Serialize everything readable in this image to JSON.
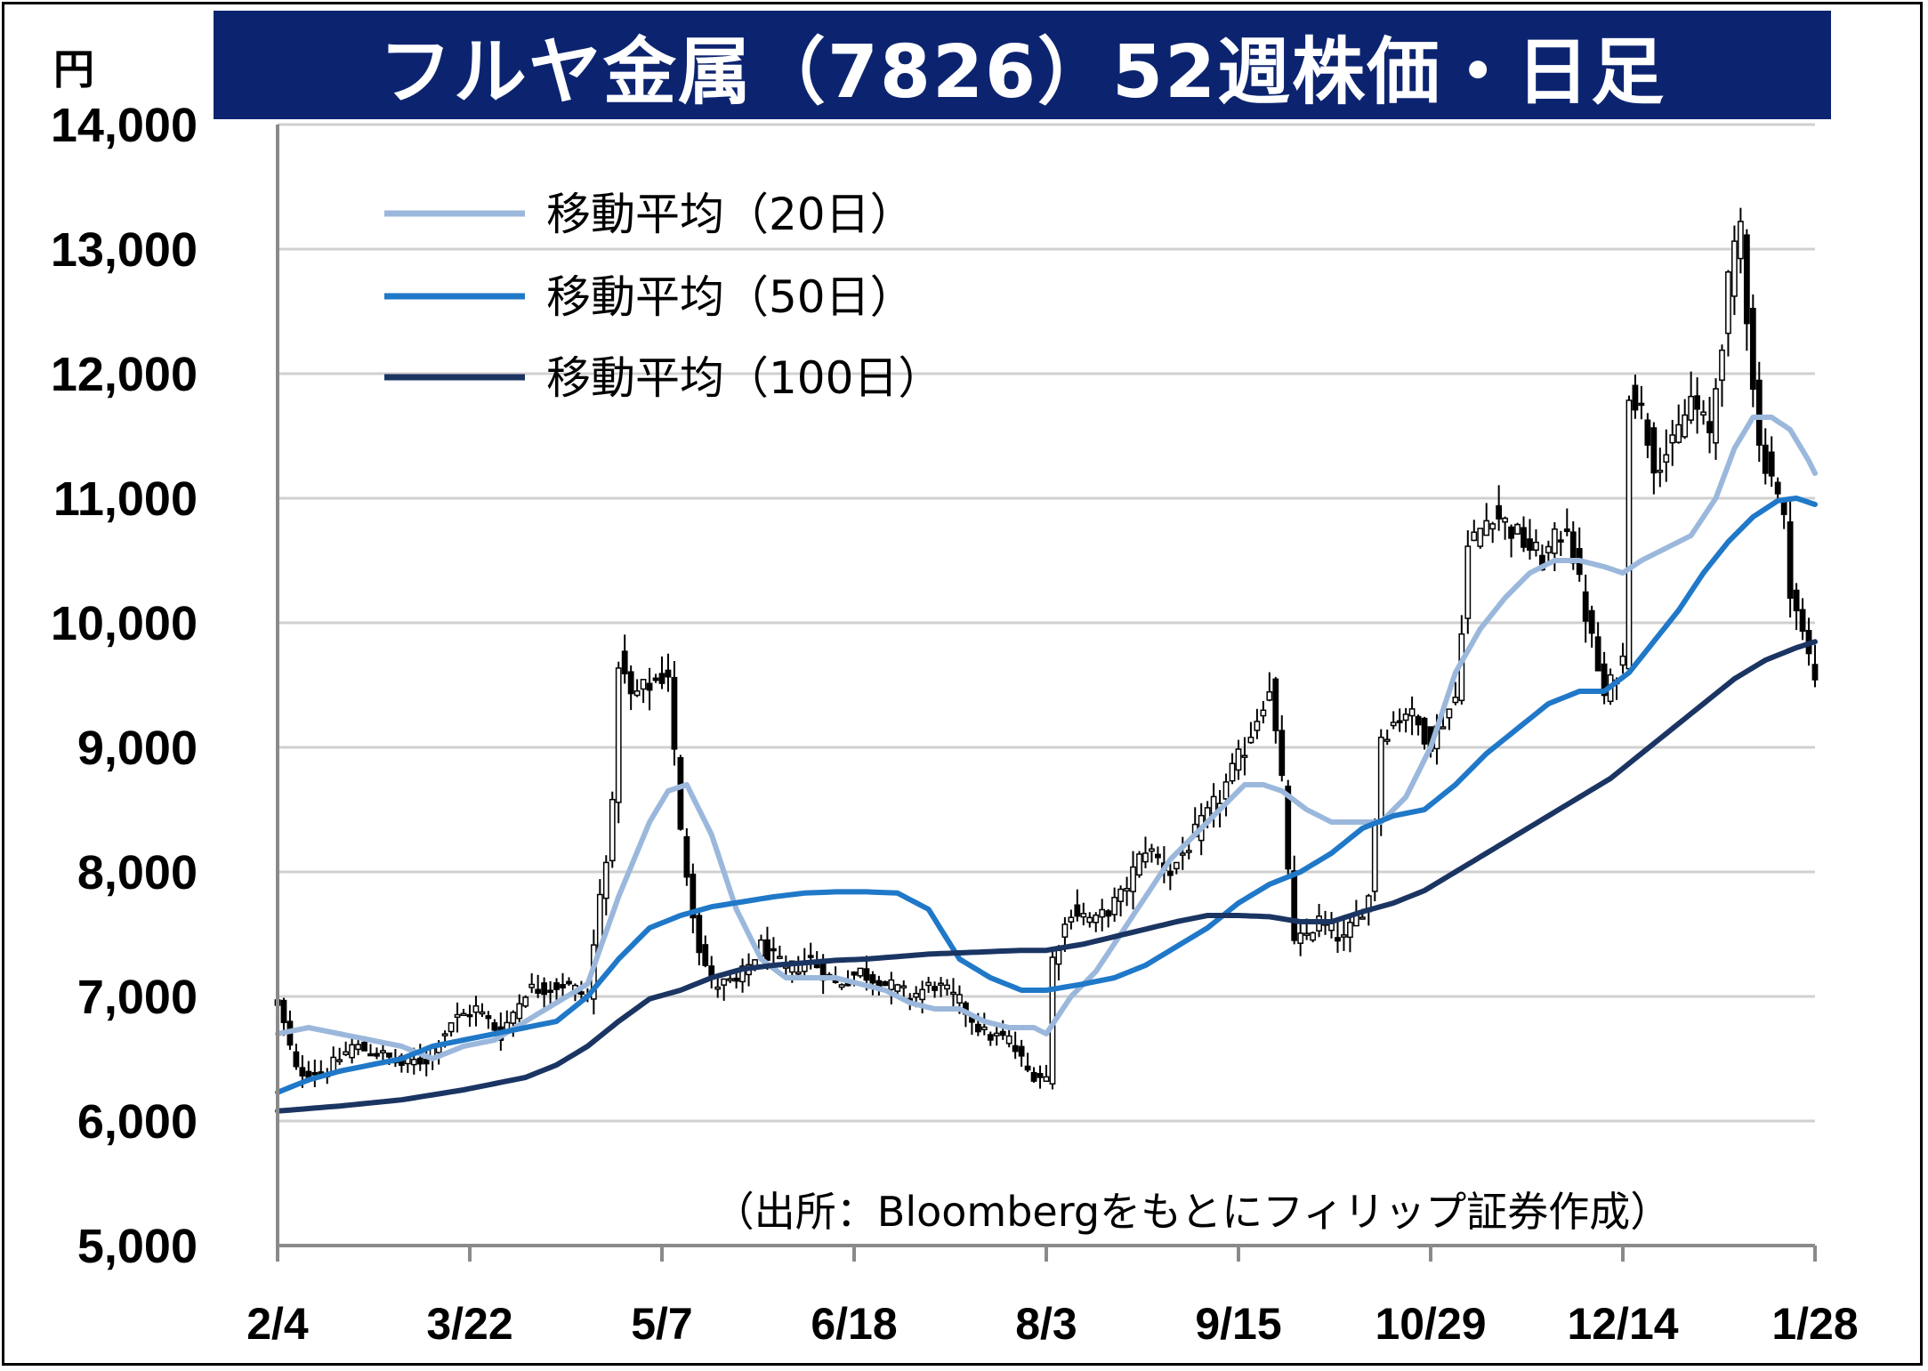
{
  "title": "フルヤ金属（7826）52週株価・日足",
  "unit": "円",
  "source": "（出所：Bloombergをもとにフィリップ証券作成）",
  "colors": {
    "title_bg": "#0c2470",
    "ma20": "#9bb8dc",
    "ma50": "#1f78c8",
    "ma100": "#1b3563",
    "candle": "#000000",
    "grid": "#d0d0d0"
  },
  "chart_data": {
    "type": "candlestick",
    "title": "フルヤ金属（7826）52週株価・日足",
    "ylabel": "円",
    "ylim": [
      5000,
      14000
    ],
    "yticks": [
      {
        "value": 5000,
        "label": "5,000"
      },
      {
        "value": 6000,
        "label": "6,000"
      },
      {
        "value": 7000,
        "label": "7,000"
      },
      {
        "value": 8000,
        "label": "8,000"
      },
      {
        "value": 9000,
        "label": "9,000"
      },
      {
        "value": 10000,
        "label": "10,000"
      },
      {
        "value": 11000,
        "label": "11,000"
      },
      {
        "value": 12000,
        "label": "12,000"
      },
      {
        "value": 13000,
        "label": "13,000"
      },
      {
        "value": 14000,
        "label": "14,000"
      }
    ],
    "xticks": [
      {
        "index": 0,
        "label": "2/4"
      },
      {
        "index": 31,
        "label": "3/22"
      },
      {
        "index": 62,
        "label": "5/7"
      },
      {
        "index": 93,
        "label": "6/18"
      },
      {
        "index": 124,
        "label": "8/3"
      },
      {
        "index": 155,
        "label": "9/15"
      },
      {
        "index": 186,
        "label": "10/29"
      },
      {
        "index": 217,
        "label": "12/14"
      },
      {
        "index": 248,
        "label": "1/28"
      }
    ],
    "x_count": 249,
    "grid": true,
    "legend_position": "top-left",
    "close_anchors": [
      [
        0,
        6950
      ],
      [
        3,
        6400
      ],
      [
        8,
        6400
      ],
      [
        12,
        6600
      ],
      [
        16,
        6550
      ],
      [
        20,
        6450
      ],
      [
        24,
        6500
      ],
      [
        28,
        6800
      ],
      [
        32,
        6900
      ],
      [
        36,
        6700
      ],
      [
        40,
        7050
      ],
      [
        46,
        7100
      ],
      [
        50,
        7000
      ],
      [
        52,
        7800
      ],
      [
        54,
        8500
      ],
      [
        55,
        9700
      ],
      [
        57,
        9400
      ],
      [
        60,
        9500
      ],
      [
        63,
        9600
      ],
      [
        65,
        8300
      ],
      [
        68,
        7400
      ],
      [
        70,
        7100
      ],
      [
        74,
        7100
      ],
      [
        78,
        7400
      ],
      [
        82,
        7200
      ],
      [
        86,
        7300
      ],
      [
        90,
        7100
      ],
      [
        94,
        7200
      ],
      [
        98,
        7100
      ],
      [
        102,
        7000
      ],
      [
        106,
        7100
      ],
      [
        110,
        6950
      ],
      [
        114,
        6700
      ],
      [
        118,
        6650
      ],
      [
        121,
        6400
      ],
      [
        124,
        6350
      ],
      [
        125,
        7300
      ],
      [
        128,
        7700
      ],
      [
        132,
        7600
      ],
      [
        136,
        7800
      ],
      [
        140,
        8200
      ],
      [
        144,
        8000
      ],
      [
        148,
        8300
      ],
      [
        152,
        8600
      ],
      [
        156,
        9000
      ],
      [
        160,
        9500
      ],
      [
        162,
        8700
      ],
      [
        164,
        7400
      ],
      [
        168,
        7600
      ],
      [
        172,
        7450
      ],
      [
        176,
        7800
      ],
      [
        178,
        9100
      ],
      [
        182,
        9300
      ],
      [
        186,
        9050
      ],
      [
        190,
        9400
      ],
      [
        192,
        10600
      ],
      [
        196,
        10900
      ],
      [
        200,
        10700
      ],
      [
        204,
        10500
      ],
      [
        208,
        10800
      ],
      [
        210,
        10300
      ],
      [
        214,
        9400
      ],
      [
        217,
        9700
      ],
      [
        218,
        11900
      ],
      [
        220,
        11700
      ],
      [
        222,
        11300
      ],
      [
        225,
        11400
      ],
      [
        228,
        11800
      ],
      [
        231,
        11500
      ],
      [
        234,
        12700
      ],
      [
        236,
        13200
      ],
      [
        237,
        12500
      ],
      [
        239,
        11400
      ],
      [
        241,
        11200
      ],
      [
        243,
        10800
      ],
      [
        244,
        10300
      ],
      [
        246,
        9900
      ],
      [
        248,
        9550
      ],
      [
        249,
        9400
      ],
      [
        250,
        9450
      ]
    ],
    "series": [
      {
        "name": "移動平均（20日）",
        "anchors": [
          [
            0,
            6700
          ],
          [
            5,
            6750
          ],
          [
            10,
            6700
          ],
          [
            15,
            6650
          ],
          [
            20,
            6600
          ],
          [
            25,
            6500
          ],
          [
            30,
            6600
          ],
          [
            35,
            6650
          ],
          [
            40,
            6800
          ],
          [
            45,
            6950
          ],
          [
            50,
            7100
          ],
          [
            55,
            7800
          ],
          [
            60,
            8400
          ],
          [
            63,
            8650
          ],
          [
            66,
            8700
          ],
          [
            70,
            8300
          ],
          [
            74,
            7700
          ],
          [
            78,
            7300
          ],
          [
            82,
            7150
          ],
          [
            86,
            7150
          ],
          [
            90,
            7150
          ],
          [
            94,
            7100
          ],
          [
            98,
            7050
          ],
          [
            102,
            6950
          ],
          [
            106,
            6900
          ],
          [
            110,
            6900
          ],
          [
            114,
            6800
          ],
          [
            118,
            6750
          ],
          [
            122,
            6750
          ],
          [
            124,
            6700
          ],
          [
            128,
            7000
          ],
          [
            132,
            7200
          ],
          [
            136,
            7500
          ],
          [
            140,
            7800
          ],
          [
            144,
            8100
          ],
          [
            148,
            8300
          ],
          [
            152,
            8500
          ],
          [
            156,
            8700
          ],
          [
            159,
            8700
          ],
          [
            162,
            8650
          ],
          [
            166,
            8500
          ],
          [
            170,
            8400
          ],
          [
            174,
            8400
          ],
          [
            178,
            8400
          ],
          [
            182,
            8600
          ],
          [
            186,
            9000
          ],
          [
            190,
            9600
          ],
          [
            194,
            9950
          ],
          [
            198,
            10200
          ],
          [
            202,
            10400
          ],
          [
            206,
            10500
          ],
          [
            210,
            10500
          ],
          [
            214,
            10450
          ],
          [
            217,
            10400
          ],
          [
            220,
            10500
          ],
          [
            224,
            10600
          ],
          [
            228,
            10700
          ],
          [
            232,
            11000
          ],
          [
            235,
            11400
          ],
          [
            238,
            11650
          ],
          [
            241,
            11650
          ],
          [
            244,
            11550
          ],
          [
            247,
            11300
          ],
          [
            250,
            11000
          ]
        ]
      },
      {
        "name": "移動平均（50日）",
        "anchors": [
          [
            0,
            6230
          ],
          [
            5,
            6330
          ],
          [
            10,
            6400
          ],
          [
            15,
            6450
          ],
          [
            20,
            6500
          ],
          [
            25,
            6600
          ],
          [
            30,
            6650
          ],
          [
            35,
            6700
          ],
          [
            40,
            6750
          ],
          [
            45,
            6800
          ],
          [
            50,
            7000
          ],
          [
            55,
            7300
          ],
          [
            60,
            7550
          ],
          [
            65,
            7650
          ],
          [
            70,
            7720
          ],
          [
            75,
            7760
          ],
          [
            80,
            7800
          ],
          [
            85,
            7830
          ],
          [
            90,
            7840
          ],
          [
            95,
            7840
          ],
          [
            100,
            7830
          ],
          [
            105,
            7700
          ],
          [
            110,
            7300
          ],
          [
            115,
            7150
          ],
          [
            120,
            7050
          ],
          [
            124,
            7050
          ],
          [
            130,
            7100
          ],
          [
            135,
            7150
          ],
          [
            140,
            7250
          ],
          [
            145,
            7400
          ],
          [
            150,
            7550
          ],
          [
            155,
            7750
          ],
          [
            160,
            7900
          ],
          [
            165,
            8000
          ],
          [
            170,
            8150
          ],
          [
            175,
            8350
          ],
          [
            180,
            8450
          ],
          [
            185,
            8500
          ],
          [
            190,
            8700
          ],
          [
            195,
            8950
          ],
          [
            200,
            9150
          ],
          [
            205,
            9350
          ],
          [
            210,
            9450
          ],
          [
            214,
            9450
          ],
          [
            218,
            9600
          ],
          [
            222,
            9850
          ],
          [
            226,
            10100
          ],
          [
            230,
            10400
          ],
          [
            234,
            10650
          ],
          [
            238,
            10850
          ],
          [
            242,
            10980
          ],
          [
            245,
            11000
          ],
          [
            248,
            10950
          ],
          [
            250,
            10880
          ]
        ]
      },
      {
        "name": "移動平均（100日）",
        "anchors": [
          [
            0,
            6080
          ],
          [
            10,
            6120
          ],
          [
            20,
            6170
          ],
          [
            30,
            6250
          ],
          [
            40,
            6350
          ],
          [
            45,
            6450
          ],
          [
            50,
            6600
          ],
          [
            55,
            6800
          ],
          [
            60,
            6980
          ],
          [
            65,
            7050
          ],
          [
            70,
            7150
          ],
          [
            75,
            7220
          ],
          [
            80,
            7250
          ],
          [
            85,
            7270
          ],
          [
            90,
            7290
          ],
          [
            95,
            7300
          ],
          [
            100,
            7320
          ],
          [
            105,
            7340
          ],
          [
            110,
            7350
          ],
          [
            115,
            7360
          ],
          [
            120,
            7370
          ],
          [
            124,
            7370
          ],
          [
            130,
            7420
          ],
          [
            135,
            7480
          ],
          [
            140,
            7540
          ],
          [
            145,
            7600
          ],
          [
            150,
            7650
          ],
          [
            155,
            7650
          ],
          [
            160,
            7640
          ],
          [
            165,
            7600
          ],
          [
            170,
            7600
          ],
          [
            175,
            7680
          ],
          [
            180,
            7750
          ],
          [
            185,
            7850
          ],
          [
            190,
            8000
          ],
          [
            195,
            8150
          ],
          [
            200,
            8300
          ],
          [
            205,
            8450
          ],
          [
            210,
            8600
          ],
          [
            215,
            8750
          ],
          [
            220,
            8950
          ],
          [
            225,
            9150
          ],
          [
            230,
            9350
          ],
          [
            235,
            9550
          ],
          [
            240,
            9700
          ],
          [
            245,
            9800
          ],
          [
            250,
            9880
          ]
        ]
      }
    ]
  }
}
